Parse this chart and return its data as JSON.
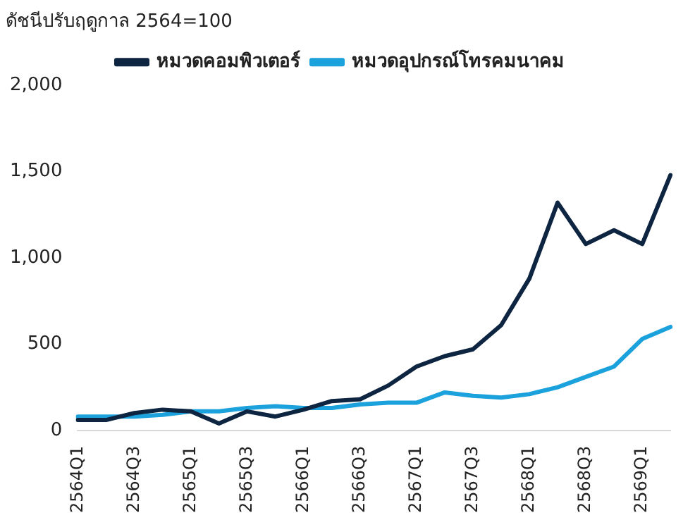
{
  "chart_data": {
    "type": "line",
    "ylabel": "ดัชนีปรับฤดูกาล 2564=100",
    "categories": [
      "2564Q1",
      null,
      "2564Q3",
      null,
      "2565Q1",
      null,
      "2565Q3",
      null,
      "2566Q1",
      null,
      "2566Q3",
      null,
      "2567Q1",
      null,
      "2567Q3",
      null,
      "2568Q1",
      null,
      "2568Q3",
      null,
      "2569Q1",
      null
    ],
    "series": [
      {
        "name": "หมวดคอมพิวเตอร์",
        "color": "#0e2541",
        "values": [
          60,
          60,
          100,
          120,
          110,
          40,
          110,
          80,
          120,
          170,
          180,
          260,
          370,
          430,
          470,
          610,
          880,
          1320,
          1080,
          1160,
          1080,
          1480
        ]
      },
      {
        "name": "หมวดอุปกรณ์โทรคมนาคม",
        "color": "#1ba1dc",
        "values": [
          80,
          80,
          80,
          90,
          110,
          110,
          130,
          140,
          130,
          130,
          150,
          160,
          160,
          220,
          200,
          190,
          210,
          250,
          310,
          370,
          530,
          600
        ]
      }
    ],
    "ylim": [
      0,
      2000
    ],
    "yticks": [
      0,
      500,
      {
        "value": 1000,
        "label": "1,000"
      },
      {
        "value": 1500,
        "label": "1,500"
      },
      {
        "value": 2000,
        "label": "2,000"
      }
    ],
    "grid": false,
    "legend": "top",
    "marker": "none",
    "line_style": "solid"
  }
}
